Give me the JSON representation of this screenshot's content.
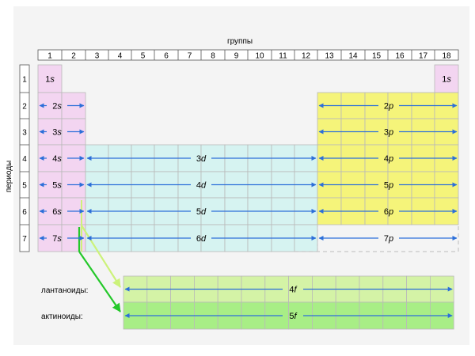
{
  "axis": {
    "groups_label": "группы",
    "periods_label": "периоды"
  },
  "group_numbers": [
    "1",
    "2",
    "3",
    "4",
    "5",
    "6",
    "7",
    "8",
    "9",
    "10",
    "11",
    "12",
    "13",
    "14",
    "15",
    "16",
    "17",
    "18"
  ],
  "period_numbers": [
    "1",
    "2",
    "3",
    "4",
    "5",
    "6",
    "7"
  ],
  "s_block": {
    "labels": [
      {
        "period": "1",
        "name": "1s"
      },
      {
        "period": "1",
        "name": "1s"
      },
      {
        "period": "2",
        "name": "2s"
      },
      {
        "period": "3",
        "name": "3s"
      },
      {
        "period": "4",
        "name": "4s"
      },
      {
        "period": "5",
        "name": "5s"
      },
      {
        "period": "6",
        "name": "6s"
      },
      {
        "period": "7",
        "name": "7s"
      }
    ]
  },
  "d_block": {
    "labels": [
      {
        "period": "4",
        "name": "3d"
      },
      {
        "period": "5",
        "name": "4d"
      },
      {
        "period": "6",
        "name": "5d"
      },
      {
        "period": "7",
        "name": "6d"
      }
    ]
  },
  "p_block": {
    "labels": [
      {
        "period": "2",
        "name": "2p"
      },
      {
        "period": "3",
        "name": "3p"
      },
      {
        "period": "4",
        "name": "4p"
      },
      {
        "period": "5",
        "name": "5p"
      },
      {
        "period": "6",
        "name": "6p"
      },
      {
        "period": "7",
        "name": "7p"
      }
    ]
  },
  "f_block": {
    "lanthanoids_label": "лантаноиды:",
    "actinoids_label": "актиноиды:",
    "lanthanoids_orbital": "4f",
    "actinoids_orbital": "5f"
  },
  "colors": {
    "s_block": "#f3d5f1",
    "d_block": "#d6f3f1",
    "p_block": "#f5f47a",
    "lanthanoids": "#d4f3a6",
    "actinoids": "#a8ee86",
    "arrow": "#2c6fd9",
    "pointer_lanthanoids": "#ccf27a",
    "pointer_actinoids": "#24c82a"
  }
}
